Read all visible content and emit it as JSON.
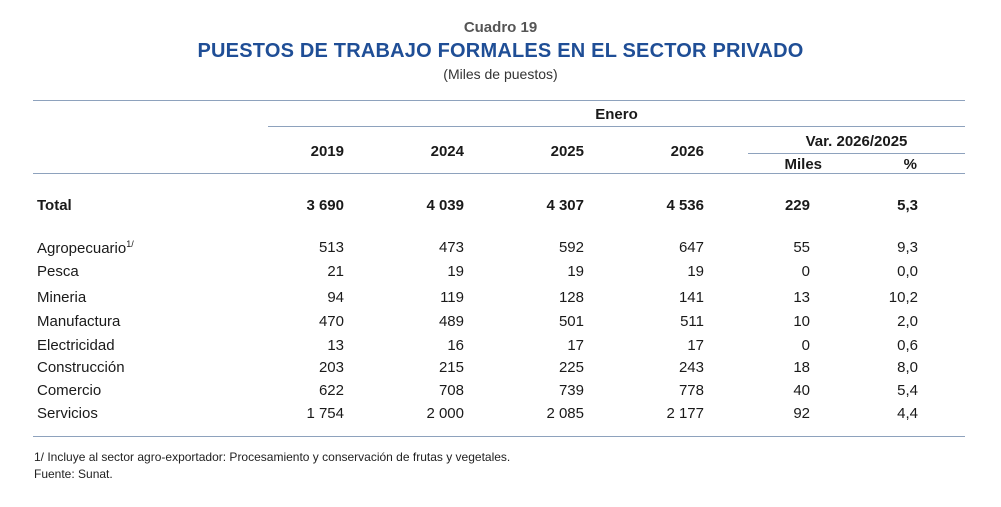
{
  "caption": {
    "label": "Cuadro 19",
    "title": "PUESTOS DE TRABAJO FORMALES EN EL SECTOR PRIVADO",
    "unit": "(Miles de puestos)"
  },
  "header": {
    "group": "Enero",
    "years": [
      "2019",
      "2024",
      "2025",
      "2026"
    ],
    "var_group": "Var. 2026/2025",
    "var_cols": [
      "Miles",
      "%"
    ]
  },
  "total": {
    "label": "Total",
    "values": [
      "3 690",
      "4 039",
      "4 307",
      "4 536",
      "229",
      "5,3"
    ]
  },
  "rows": [
    {
      "label": "Agropecuario",
      "sup": "1/",
      "values": [
        "513",
        "473",
        "592",
        "647",
        "55",
        "9,3"
      ]
    },
    {
      "label": "Pesca",
      "values": [
        "21",
        "19",
        "19",
        "19",
        "0",
        "0,0"
      ]
    },
    {
      "label": "Mineria",
      "values": [
        "94",
        "119",
        "128",
        "141",
        "13",
        "10,2"
      ]
    },
    {
      "label": "Manufactura",
      "values": [
        "470",
        "489",
        "501",
        "511",
        "10",
        "2,0"
      ]
    },
    {
      "label": "Electricidad",
      "values": [
        "13",
        "16",
        "17",
        "17",
        "0",
        "0,6"
      ]
    },
    {
      "label": "Construcción",
      "values": [
        "203",
        "215",
        "225",
        "243",
        "18",
        "8,0"
      ]
    },
    {
      "label": "Comercio",
      "values": [
        "622",
        "708",
        "739",
        "778",
        "40",
        "5,4"
      ]
    },
    {
      "label": "Servicios",
      "values": [
        "1 754",
        "2 000",
        "2 085",
        "2 177",
        "92",
        "4,4"
      ]
    }
  ],
  "footnotes": {
    "note1": "1/ Incluye al sector agro-exportador: Procesamiento y conservación de frutas y vegetales.",
    "source": "Fuente: Sunat."
  }
}
